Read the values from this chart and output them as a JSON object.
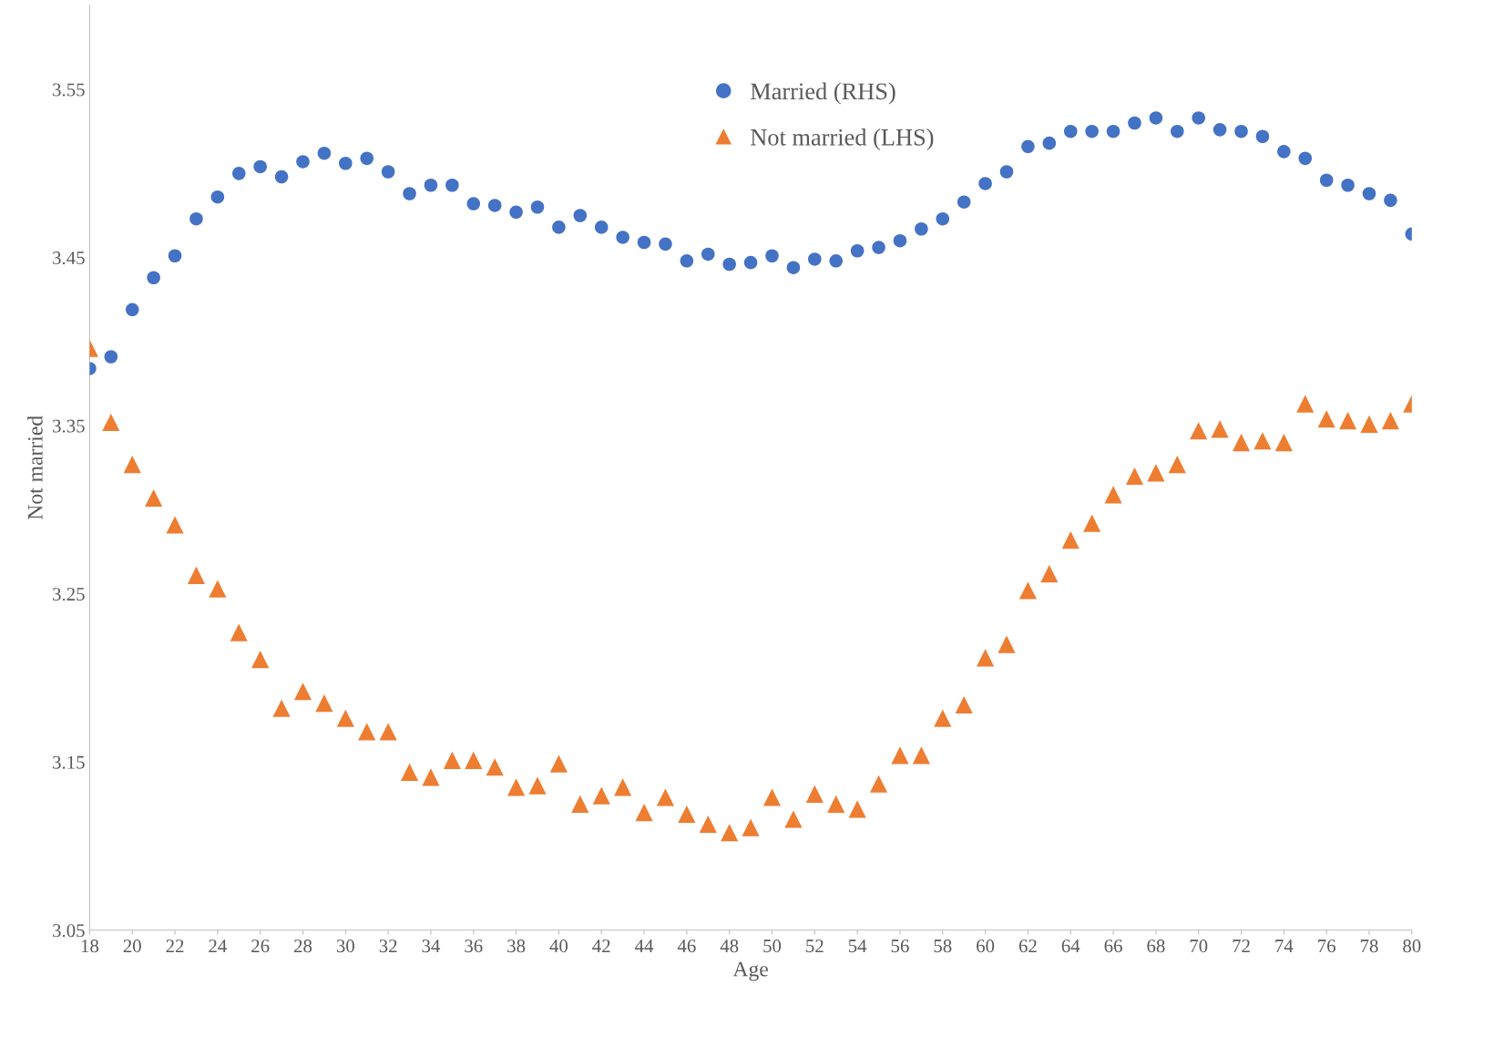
{
  "chart_data": {
    "type": "scatter",
    "xlabel": "Age",
    "ylabel": "Not married",
    "x": [
      18,
      19,
      20,
      21,
      22,
      23,
      24,
      25,
      26,
      27,
      28,
      29,
      30,
      31,
      32,
      33,
      34,
      35,
      36,
      37,
      38,
      39,
      40,
      41,
      42,
      43,
      44,
      45,
      46,
      47,
      48,
      49,
      50,
      51,
      52,
      53,
      54,
      55,
      56,
      57,
      58,
      59,
      60,
      61,
      62,
      63,
      64,
      65,
      66,
      67,
      68,
      69,
      70,
      71,
      72,
      73,
      74,
      75,
      76,
      77,
      78,
      79,
      80
    ],
    "series": [
      {
        "name": "Married (RHS)",
        "color": "#4472c4",
        "marker": "circle",
        "values": [
          3.384,
          3.391,
          3.419,
          3.438,
          3.451,
          3.473,
          3.486,
          3.5,
          3.504,
          3.498,
          3.507,
          3.512,
          3.506,
          3.509,
          3.501,
          3.488,
          3.493,
          3.493,
          3.482,
          3.481,
          3.477,
          3.48,
          3.468,
          3.475,
          3.468,
          3.462,
          3.459,
          3.458,
          3.448,
          3.452,
          3.446,
          3.447,
          3.451,
          3.444,
          3.449,
          3.448,
          3.454,
          3.456,
          3.46,
          3.467,
          3.473,
          3.483,
          3.494,
          3.501,
          3.516,
          3.518,
          3.525,
          3.525,
          3.525,
          3.53,
          3.533,
          3.525,
          3.533,
          3.526,
          3.525,
          3.522,
          3.513,
          3.509,
          3.496,
          3.493,
          3.488,
          3.484,
          3.464
        ]
      },
      {
        "name": "Not married (LHS)",
        "color": "#ed7d31",
        "marker": "triangle",
        "values": [
          3.396,
          3.352,
          3.327,
          3.307,
          3.291,
          3.261,
          3.253,
          3.227,
          3.211,
          3.182,
          3.192,
          3.185,
          3.176,
          3.168,
          3.168,
          3.144,
          3.141,
          3.151,
          3.151,
          3.147,
          3.135,
          3.136,
          3.149,
          3.125,
          3.13,
          3.135,
          3.12,
          3.129,
          3.119,
          3.113,
          3.108,
          3.111,
          3.129,
          3.116,
          3.131,
          3.125,
          3.122,
          3.137,
          3.154,
          3.154,
          3.176,
          3.184,
          3.212,
          3.22,
          3.252,
          3.262,
          3.282,
          3.292,
          3.309,
          3.32,
          3.322,
          3.327,
          3.347,
          3.348,
          3.34,
          3.341,
          3.34,
          3.363,
          3.354,
          3.353,
          3.351,
          3.353,
          3.363
        ]
      }
    ],
    "xlim": [
      18,
      80
    ],
    "xticks": [
      18,
      20,
      22,
      24,
      26,
      28,
      30,
      32,
      34,
      36,
      38,
      40,
      42,
      44,
      46,
      48,
      50,
      52,
      54,
      56,
      58,
      60,
      62,
      64,
      66,
      68,
      70,
      72,
      74,
      76,
      78,
      80
    ],
    "ylim": [
      3.05,
      3.6
    ],
    "yticks": [
      3.05,
      3.15,
      3.25,
      3.35,
      3.45,
      3.55
    ],
    "grid": false,
    "legend": "top"
  }
}
